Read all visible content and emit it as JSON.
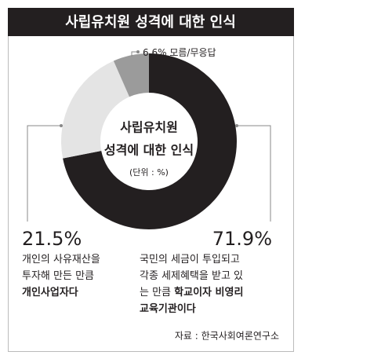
{
  "chart_data": {
    "type": "donut",
    "title": "사립유치원 성격에 대한 인식",
    "center_lines": [
      "사립유치원",
      "성격에 대한 인식"
    ],
    "unit": "(단위 : %)",
    "categories": [
      null,
      null,
      "모름/무응답"
    ],
    "values": [
      71.9,
      21.5,
      6.6
    ],
    "value_labels": [
      "71.9%",
      "21.5%",
      "6.6%"
    ],
    "colors": [
      "#231f20",
      "#e4e4e4",
      "#9b9b9b"
    ],
    "descriptions": [
      [
        [
          {
            "text": "국민의 세금이 투입되고",
            "bold": false
          }
        ],
        [
          {
            "text": "각종 세제혜택을 받고 있",
            "bold": false
          }
        ],
        [
          {
            "text": "는 만큼 ",
            "bold": false
          },
          {
            "text": "학교이자 비영리",
            "bold": true
          }
        ],
        [
          {
            "text": "교육기관이다",
            "bold": true
          }
        ]
      ],
      [
        [
          {
            "text": "개인의 사유재산을",
            "bold": false
          }
        ],
        [
          {
            "text": "투자해 만든 만큼",
            "bold": false
          }
        ],
        [
          {
            "text": "개인사업자다",
            "bold": true
          }
        ]
      ],
      null
    ],
    "source": "자료 : 한국사회여론연구소"
  }
}
